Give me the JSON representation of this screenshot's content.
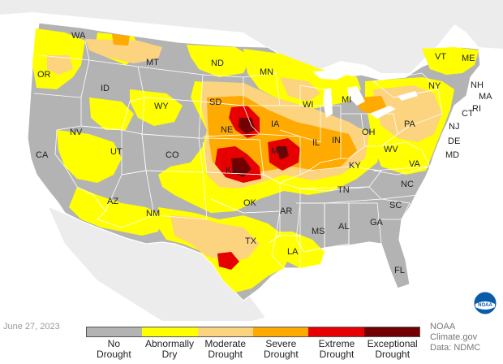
{
  "date": "June 27, 2023",
  "credit": {
    "line1": "NOAA Climate.gov",
    "line2": "Data: NDMC"
  },
  "logo": {
    "icon": "noaa-logo-icon",
    "text": "NOAA"
  },
  "legend": [
    {
      "line1": "No",
      "line2": "Drought",
      "color": "#b3b3b3"
    },
    {
      "line1": "Abnormally",
      "line2": "Dry",
      "color": "#ffff00"
    },
    {
      "line1": "Moderate",
      "line2": "Drought",
      "color": "#fcd37f"
    },
    {
      "line1": "Severe",
      "line2": "Drought",
      "color": "#ffaa00"
    },
    {
      "line1": "Extreme",
      "line2": "Drought",
      "color": "#e60000"
    },
    {
      "line1": "Exceptional",
      "line2": "Drought",
      "color": "#730000"
    }
  ],
  "states": [
    "WA",
    "OR",
    "ID",
    "MT",
    "ND",
    "MN",
    "SD",
    "WY",
    "NE",
    "IA",
    "WI",
    "MI",
    "NV",
    "CA",
    "UT",
    "CO",
    "KS",
    "MO",
    "IL",
    "IN",
    "OH",
    "PA",
    "NY",
    "VT",
    "ME",
    "NH",
    "MA",
    "CT",
    "RI",
    "NJ",
    "DE",
    "MD",
    "WV",
    "VA",
    "KY",
    "TN",
    "NC",
    "SC",
    "GA",
    "AL",
    "MS",
    "AR",
    "LA",
    "OK",
    "TX",
    "NM",
    "AZ",
    "FL"
  ]
}
